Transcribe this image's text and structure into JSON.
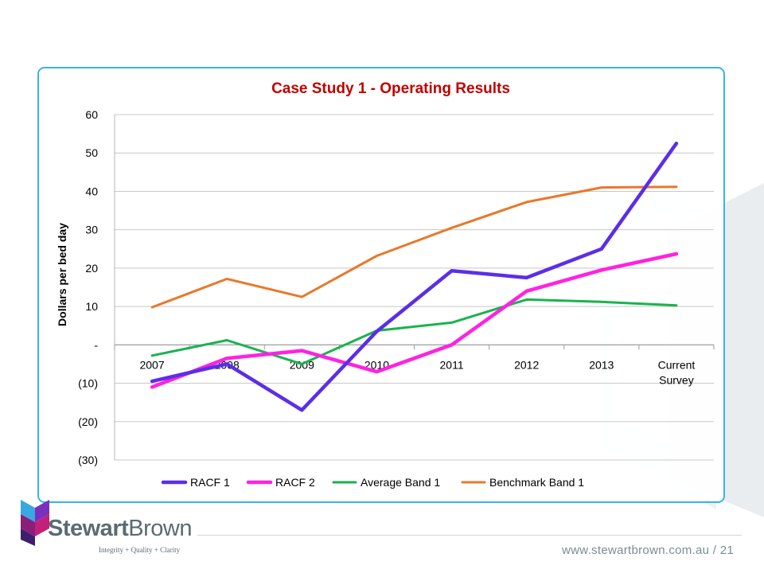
{
  "chart_data": {
    "type": "line",
    "title": "Case Study 1 - Operating Results",
    "ylabel": "Dollars per bed day",
    "xlabel": "",
    "categories": [
      "2007",
      "2008",
      "2009",
      "2010",
      "2011",
      "2012",
      "2013",
      "Current Survey"
    ],
    "category_lines": [
      [
        "2007"
      ],
      [
        "2008"
      ],
      [
        "2009"
      ],
      [
        "2010"
      ],
      [
        "2011"
      ],
      [
        "2012"
      ],
      [
        "2013"
      ],
      [
        "Current",
        "Survey"
      ]
    ],
    "ylim": [
      -30,
      60
    ],
    "yticks": [
      60,
      50,
      40,
      30,
      20,
      10,
      0,
      -10,
      -20,
      -30
    ],
    "ytick_labels": [
      "60",
      "50",
      "40",
      "30",
      "20",
      "10",
      "-",
      "(10)",
      "(20)",
      "(30)"
    ],
    "grid": true,
    "legend_position": "bottom",
    "series": [
      {
        "name": "RACF 1",
        "color": "#5b2ee8",
        "values": [
          -9.5,
          -5,
          -17,
          3.5,
          19.3,
          17.5,
          25,
          52.5
        ]
      },
      {
        "name": "RACF 2",
        "color": "#ff22e0",
        "values": [
          -11,
          -3.5,
          -1.5,
          -7,
          0,
          14,
          19.5,
          23.7
        ]
      },
      {
        "name": "Average Band 1",
        "color": "#19b34f",
        "values": [
          -2.8,
          1.2,
          -5,
          3.7,
          5.8,
          11.8,
          11.2,
          10.3
        ]
      },
      {
        "name": "Benchmark Band 1",
        "color": "#e9782a",
        "values": [
          9.8,
          17.2,
          12.5,
          23.2,
          30.5,
          37.2,
          41,
          41.2
        ]
      }
    ]
  },
  "footer": {
    "url": "www.stewartbrown.com.au / 21"
  },
  "brand": {
    "name_part1": "Stewart",
    "name_part2": "Brown",
    "tagline": "Integrity + Quality + Clarity"
  }
}
